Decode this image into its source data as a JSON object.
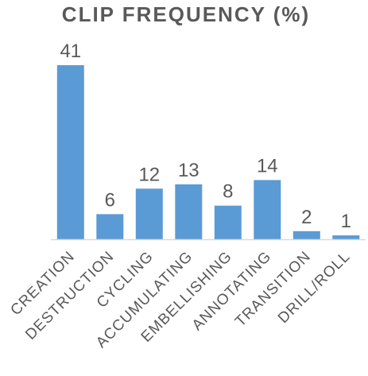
{
  "chart_data": {
    "type": "bar",
    "title": "CLIP FREQUENCY (%)",
    "categories": [
      "CREATION",
      "DESTRUCTION",
      "CYCLING",
      "ACCUMULATING",
      "EMBELLISHING",
      "ANNOTATING",
      "TRANSITION",
      "DRILL/ROLL"
    ],
    "values": [
      41,
      6,
      12,
      13,
      8,
      14,
      2,
      1
    ],
    "data_labels": [
      "41",
      "6",
      "12",
      "13",
      "8",
      "14",
      "2",
      "1"
    ],
    "xlabel": "",
    "ylabel": "",
    "ylim": [
      0,
      41
    ],
    "grid": false,
    "legend": "none",
    "bar_color": "#5b9bd5",
    "text_color": "#595959",
    "axis_color": "#d9d9d9"
  }
}
